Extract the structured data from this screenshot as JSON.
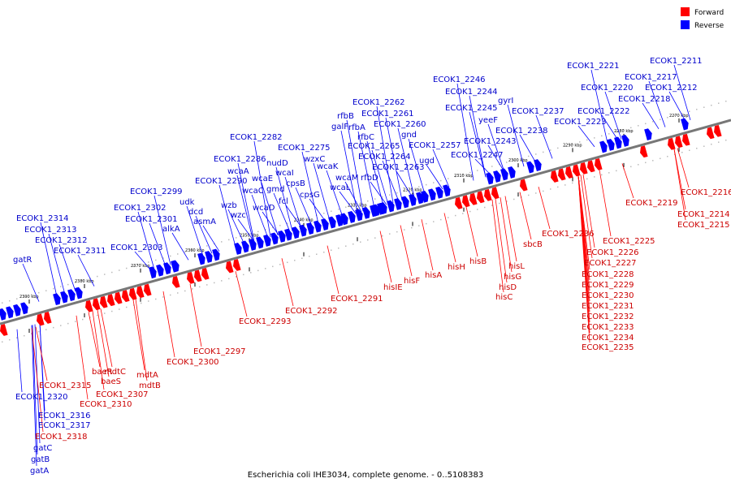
{
  "caption": "Escherichia coli IHE3034, complete genome. - 0..5108383",
  "legend": [
    {
      "label": "Forward",
      "color": "#ff0000"
    },
    {
      "label": "Reverse",
      "color": "#0000ff"
    }
  ],
  "colors": {
    "forward": "#ff0000",
    "reverse": "#0000ff",
    "forward_text": "#cc0000",
    "reverse_text": "#0000cc",
    "axis": "#777777"
  },
  "ticks": [
    "2270 kbp",
    "2280 kbp",
    "2290 kbp",
    "2300 kbp",
    "2310 kbp",
    "2320 kbp",
    "2330 kbp",
    "2340 kbp",
    "2350 kbp",
    "2360 kbp",
    "2370 kbp",
    "2380 kbp",
    "2390 kbp"
  ],
  "reverse_genes": [
    "ECOK1_2211",
    "ECOK1_2212",
    "ECOK1_2217",
    "ECOK1_2218",
    "ECOK1_2220",
    "ECOK1_2221",
    "ECOK1_2222",
    "ECOK1_2223",
    "gyrI",
    "ECOK1_2237",
    "ECOK1_2238",
    "ECOK1_2246",
    "ECOK1_2244",
    "ECOK1_2245",
    "yeeF",
    "ECOK1_2243",
    "ECOK1_2247",
    "ECOK1_2262",
    "ECOK1_2261",
    "ECOK1_2260",
    "gnd",
    "ECOK1_2257",
    "ugd",
    "rfbB",
    "galF",
    "rfbA",
    "rfbC",
    "ECOK1_2265",
    "ECOK1_2264",
    "ECOK1_2263",
    "rfbD",
    "wzxC",
    "ECOK1_2275",
    "wcaK",
    "wcaM",
    "wcaL",
    "ECOK1_2282",
    "ECOK1_2286",
    "nudD",
    "wcaA",
    "wcaI",
    "wcaE",
    "wcaC",
    "gmd",
    "cpsB",
    "fcl",
    "cpsG",
    "wcaD",
    "ECOK1_2290",
    "ECOK1_2299",
    "udk",
    "dcd",
    "asmA",
    "wzb",
    "wzc",
    "ECOK1_2302",
    "ECOK1_2301",
    "alkA",
    "ECOK1_2303",
    "ECOK1_2314",
    "ECOK1_2313",
    "ECOK1_2312",
    "ECOK1_2311",
    "gatR",
    "ECOK1_2320",
    "ECOK1_2316",
    "ECOK1_2317",
    "gatC",
    "gatB",
    "gatA"
  ],
  "forward_genes": [
    "ECOK1_2216",
    "ECOK1_2214",
    "ECOK1_2215",
    "ECOK1_2219",
    "ECOK1_2236",
    "ECOK1_2225",
    "ECOK1_2226",
    "ECOK1_2227",
    "ECOK1_2228",
    "ECOK1_2229",
    "ECOK1_2230",
    "ECOK1_2231",
    "ECOK1_2232",
    "ECOK1_2233",
    "ECOK1_2234",
    "ECOK1_2235",
    "sbcB",
    "hisL",
    "hisG",
    "hisD",
    "hisC",
    "hisB",
    "hisH",
    "hisA",
    "hisF",
    "hisIE",
    "ECOK1_2291",
    "ECOK1_2292",
    "ECOK1_2293",
    "ECOK1_2297",
    "ECOK1_2300",
    "mdtA",
    "mdtB",
    "mdtC",
    "baeR",
    "baeS",
    "ECOK1_2307",
    "ECOK1_2310",
    "ECOK1_2315",
    "ECOK1_2318"
  ]
}
